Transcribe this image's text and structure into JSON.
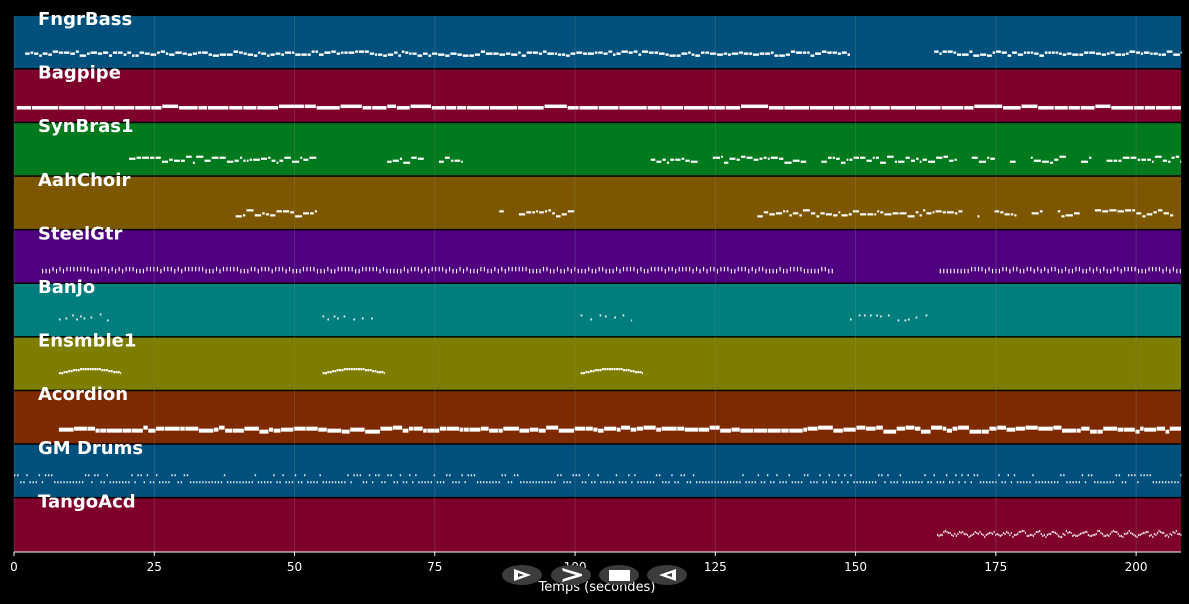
{
  "window": {
    "background": "#000000",
    "grid_color": "#888888"
  },
  "x_axis": {
    "title": "Temps (secondes)",
    "min": 0,
    "max": 208,
    "ticks": [
      0,
      25,
      50,
      75,
      100,
      125,
      150,
      175,
      200
    ]
  },
  "tracks": [
    {
      "name": "FngrBass",
      "color": "#00507e",
      "pattern": "walk",
      "segments": [
        [
          2,
          149
        ],
        [
          164,
          208
        ]
      ]
    },
    {
      "name": "Bagpipe",
      "color": "#7d002d",
      "pattern": "drone",
      "segments": [
        [
          0.5,
          208
        ]
      ]
    },
    {
      "name": "SynBras1",
      "color": "#007a1c",
      "pattern": "melody",
      "segments": [
        [
          20.5,
          54
        ],
        [
          66.5,
          80
        ],
        [
          113.5,
          208
        ]
      ]
    },
    {
      "name": "AahChoir",
      "color": "#7d5600",
      "pattern": "melody",
      "segments": [
        [
          39.5,
          54
        ],
        [
          86.5,
          100
        ],
        [
          132.5,
          208
        ]
      ]
    },
    {
      "name": "SteelGtr",
      "color": "#4f007e",
      "pattern": "strum",
      "segments": [
        [
          5,
          146
        ],
        [
          165,
          208
        ]
      ]
    },
    {
      "name": "Banjo",
      "color": "#007d7d",
      "pattern": "sparse",
      "segments": [
        [
          8,
          17
        ],
        [
          55,
          64
        ],
        [
          101,
          110
        ],
        [
          149,
          163
        ]
      ]
    },
    {
      "name": "Ensmble1",
      "color": "#7d7d00",
      "pattern": "phrase",
      "segments": [
        [
          8,
          19
        ],
        [
          55,
          66
        ],
        [
          101,
          112
        ]
      ]
    },
    {
      "name": "Acordion",
      "color": "#7d2a00",
      "pattern": "chords",
      "segments": [
        [
          8,
          208
        ]
      ]
    },
    {
      "name": "GM Drums",
      "color": "#00507e",
      "pattern": "drums",
      "segments": [
        [
          0,
          208
        ]
      ]
    },
    {
      "name": "TangoAcd",
      "color": "#7d002d",
      "pattern": "tremolo",
      "segments": [
        [
          164.5,
          208
        ]
      ]
    }
  ],
  "controls": [
    {
      "name": "play-button",
      "icon": "play-outline-icon"
    },
    {
      "name": "forward-button",
      "icon": "fast-forward-icon"
    },
    {
      "name": "stop-button",
      "icon": "stop-icon"
    },
    {
      "name": "rewind-button",
      "icon": "rewind-icon"
    }
  ]
}
